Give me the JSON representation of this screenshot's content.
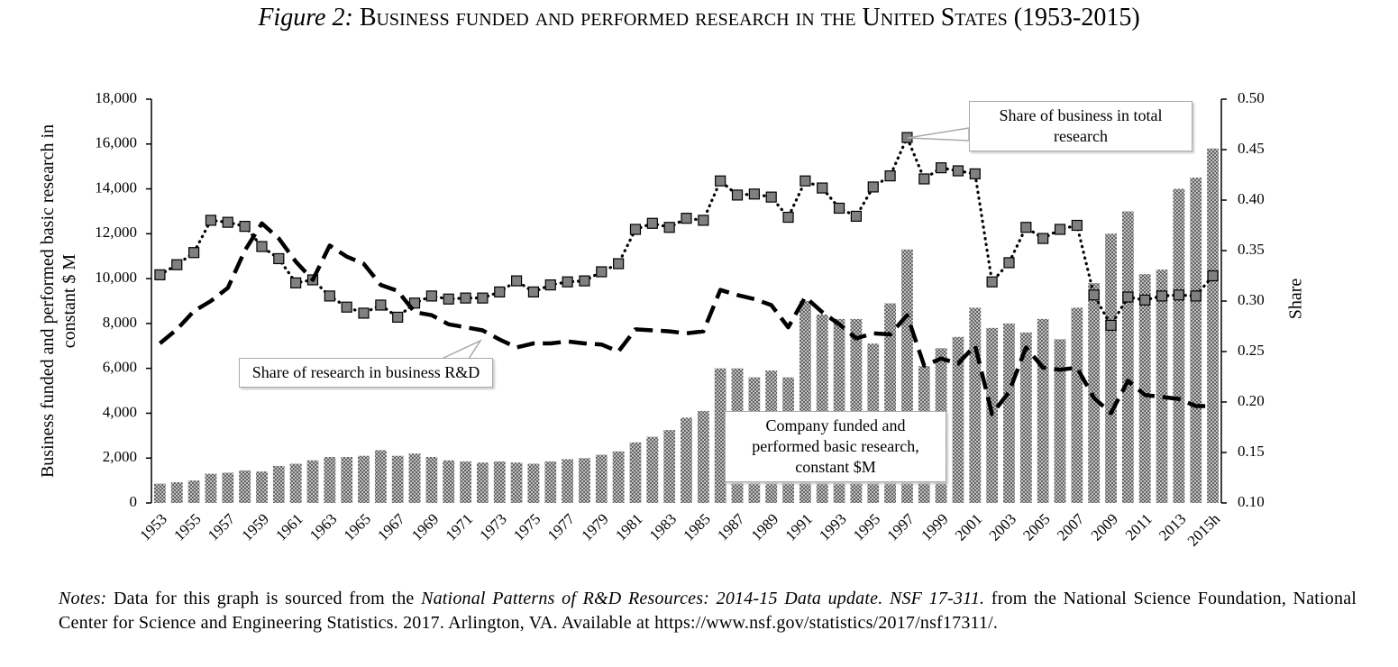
{
  "chart_data": {
    "type": "bar-line",
    "title_label": "Figure 2:",
    "title": "Business funded and performed research in the United States (1953-2015)",
    "ylabel": "Business funded and performed basic research in constant $ M",
    "y2label": "Share",
    "categories": [
      "1953",
      null,
      "1955",
      null,
      "1957",
      null,
      "1959",
      null,
      "1961",
      null,
      "1963",
      null,
      "1965",
      null,
      "1967",
      null,
      "1969",
      null,
      "1971",
      null,
      "1973",
      null,
      "1975",
      null,
      "1977",
      null,
      "1979",
      null,
      "1981",
      null,
      "1983",
      null,
      "1985",
      null,
      "1987",
      null,
      "1989",
      null,
      "1991",
      null,
      "1993",
      null,
      "1995",
      null,
      "1997",
      null,
      "1999",
      null,
      "2001",
      null,
      "2003",
      null,
      "2005",
      null,
      "2007",
      null,
      "2009",
      null,
      "2011",
      null,
      "2013",
      null,
      "2015h"
    ],
    "series": [
      {
        "name": "Company funded and performed basic research, constant $M",
        "type": "bar",
        "color": "#4a4a4a",
        "values": [
          860,
          920,
          1000,
          1300,
          1350,
          1450,
          1400,
          1650,
          1750,
          1900,
          2050,
          2050,
          2100,
          2350,
          2100,
          2200,
          2050,
          1900,
          1850,
          1800,
          1850,
          1800,
          1750,
          1850,
          1950,
          2000,
          2150,
          2300,
          2700,
          2950,
          3250,
          3800,
          4100,
          6000,
          6000,
          5600,
          5900,
          5600,
          9000,
          8400,
          8200,
          8200,
          7100,
          8900,
          11300,
          6100,
          6900,
          7400,
          8700,
          7800,
          8000,
          7600,
          8200,
          7300,
          8700,
          9800,
          12000,
          13000,
          10200,
          10400,
          14000,
          14500,
          15800
        ]
      },
      {
        "name": "Share of business in total research",
        "type": "line",
        "axis": "y2",
        "color": "#000000",
        "marker_color": "#808080",
        "line_style": "dotted",
        "values": [
          0.326,
          0.336,
          0.348,
          0.38,
          0.378,
          0.374,
          0.354,
          0.342,
          0.318,
          0.321,
          0.305,
          0.294,
          0.288,
          0.296,
          0.284,
          0.298,
          0.305,
          0.302,
          0.303,
          0.303,
          0.309,
          0.32,
          0.309,
          0.316,
          0.319,
          0.32,
          0.329,
          0.337,
          0.371,
          0.377,
          0.373,
          0.382,
          0.38,
          0.419,
          0.405,
          0.406,
          0.403,
          0.383,
          0.419,
          0.412,
          0.392,
          0.384,
          0.413,
          0.424,
          0.462,
          0.421,
          0.432,
          0.429,
          0.426,
          0.319,
          0.338,
          0.373,
          0.362,
          0.371,
          0.375,
          0.306,
          0.276,
          0.304,
          0.301,
          0.305,
          0.306,
          0.305,
          0.325
        ]
      },
      {
        "name": "Share of research in business R&D",
        "type": "line",
        "axis": "y2",
        "color": "#000000",
        "line_style": "dashed",
        "values": [
          0.258,
          0.272,
          0.29,
          0.3,
          0.313,
          0.35,
          0.377,
          0.362,
          0.339,
          0.321,
          0.355,
          0.344,
          0.337,
          0.316,
          0.31,
          0.289,
          0.286,
          0.277,
          0.274,
          0.271,
          0.262,
          0.254,
          0.258,
          0.258,
          0.26,
          0.258,
          0.257,
          0.25,
          0.272,
          0.271,
          0.27,
          0.268,
          0.27,
          0.311,
          0.306,
          0.302,
          0.296,
          0.274,
          0.304,
          0.289,
          0.277,
          0.263,
          0.268,
          0.267,
          0.286,
          0.236,
          0.243,
          0.238,
          0.256,
          0.188,
          0.21,
          0.254,
          0.234,
          0.232,
          0.234,
          0.204,
          0.189,
          0.221,
          0.207,
          0.205,
          0.203,
          0.196,
          0.196
        ]
      }
    ],
    "ylim": [
      0,
      18000
    ],
    "yticks": [
      0,
      {
        "value": 2000,
        "label": "2,000"
      },
      {
        "value": 4000,
        "label": "4,000"
      },
      {
        "value": 6000,
        "label": "6,000"
      },
      {
        "value": 8000,
        "label": "8,000"
      },
      {
        "value": 10000,
        "label": "10,000"
      },
      {
        "value": 12000,
        "label": "12,000"
      },
      {
        "value": 14000,
        "label": "14,000"
      },
      {
        "value": 16000,
        "label": "16,000"
      },
      {
        "value": 18000,
        "label": "18,000"
      }
    ],
    "y2lim": [
      0.1,
      0.5
    ],
    "y2ticks": [
      {
        "value": 0.1,
        "label": "0.10"
      },
      0.15,
      {
        "value": 0.2,
        "label": "0.20"
      },
      0.25,
      {
        "value": 0.3,
        "label": "0.30"
      },
      0.35,
      {
        "value": 0.4,
        "label": "0.40"
      },
      0.45,
      {
        "value": 0.5,
        "label": "0.50"
      }
    ],
    "grid": false,
    "notes": [
      "Notes:",
      "Data for this graph is sourced from the",
      "National Patterns of R&D Resources: 2014-15 Data update. NSF 17-311.",
      "from the National Science Foundation, National Center for Science and Engineering Statistics. 2017. Arlington, VA. Available at https://www.nsf.gov/statistics/2017/nsf17311/."
    ]
  }
}
